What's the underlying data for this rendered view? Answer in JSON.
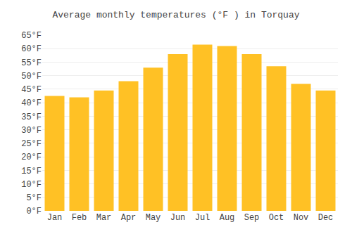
{
  "chart_data": {
    "type": "bar",
    "title": "Average monthly temperatures (°F ) in Torquay",
    "categories": [
      "Jan",
      "Feb",
      "Mar",
      "Apr",
      "May",
      "Jun",
      "Jul",
      "Aug",
      "Sep",
      "Oct",
      "Nov",
      "Dec"
    ],
    "values": [
      42.5,
      42.0,
      44.5,
      48.0,
      53.0,
      58.0,
      61.5,
      61.0,
      58.0,
      53.5,
      47.0,
      44.5
    ],
    "color": "#FFC125",
    "ylim": [
      0,
      65
    ],
    "yticks": [
      {
        "value": 0,
        "label": "0°F"
      },
      {
        "value": 5,
        "label": "5°F"
      },
      {
        "value": 10,
        "label": "10°F"
      },
      {
        "value": 15,
        "label": "15°F"
      },
      {
        "value": 20,
        "label": "20°F"
      },
      {
        "value": 25,
        "label": "25°F"
      },
      {
        "value": 30,
        "label": "30°F"
      },
      {
        "value": 35,
        "label": "35°F"
      },
      {
        "value": 40,
        "label": "40°F"
      },
      {
        "value": 45,
        "label": "45°F"
      },
      {
        "value": 50,
        "label": "50°F"
      },
      {
        "value": 55,
        "label": "55°F"
      },
      {
        "value": 60,
        "label": "60°F"
      },
      {
        "value": 65,
        "label": "65°F"
      }
    ],
    "grid": true
  }
}
